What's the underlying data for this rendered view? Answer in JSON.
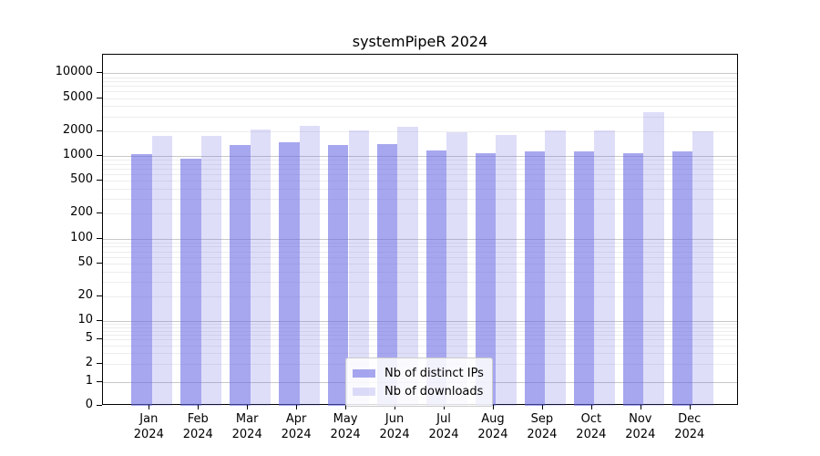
{
  "title": "systemPipeR 2024",
  "legend": {
    "items": [
      {
        "label": "Nb of distinct IPs"
      },
      {
        "label": "Nb of downloads"
      }
    ]
  },
  "colors": {
    "distinct_ips_bar": "rgba(103,103,228,0.58)",
    "downloads_bar": "rgba(103,103,228,0.22)",
    "major_grid": "#c8c8c8",
    "minor_grid": "#ededed",
    "axis": "#000000"
  },
  "chart_data": {
    "type": "bar",
    "title": "systemPipeR 2024",
    "xlabel": "",
    "ylabel": "",
    "yscale": "symlog",
    "ylim": [
      0,
      17000
    ],
    "grid": true,
    "legend_position": "lower center",
    "categories": [
      "Jan 2024",
      "Feb 2024",
      "Mar 2024",
      "Apr 2024",
      "May 2024",
      "Jun 2024",
      "Jul 2024",
      "Aug 2024",
      "Sep 2024",
      "Oct 2024",
      "Nov 2024",
      "Dec 2024"
    ],
    "x_tick_line1": [
      "Jan",
      "Feb",
      "Mar",
      "Apr",
      "May",
      "Jun",
      "Jul",
      "Aug",
      "Sep",
      "Oct",
      "Nov",
      "Dec"
    ],
    "x_tick_line2": "2024",
    "yticks": [
      10000,
      5000,
      2000,
      1000,
      500,
      200,
      100,
      50,
      20,
      10,
      5,
      2,
      1,
      0
    ],
    "ytick_labels": [
      "10000",
      "5000",
      "2000",
      "1000",
      "500",
      "200",
      "100",
      "50",
      "20",
      "10",
      "5",
      "2",
      "1",
      "0"
    ],
    "series": [
      {
        "name": "Nb of distinct IPs",
        "values": [
          1040,
          920,
          1370,
          1460,
          1340,
          1400,
          1160,
          1070,
          1140,
          1150,
          1090,
          1130
        ]
      },
      {
        "name": "Nb of downloads",
        "values": [
          1760,
          1770,
          2100,
          2300,
          2030,
          2240,
          1920,
          1810,
          2050,
          2060,
          3360,
          1990
        ]
      }
    ]
  }
}
